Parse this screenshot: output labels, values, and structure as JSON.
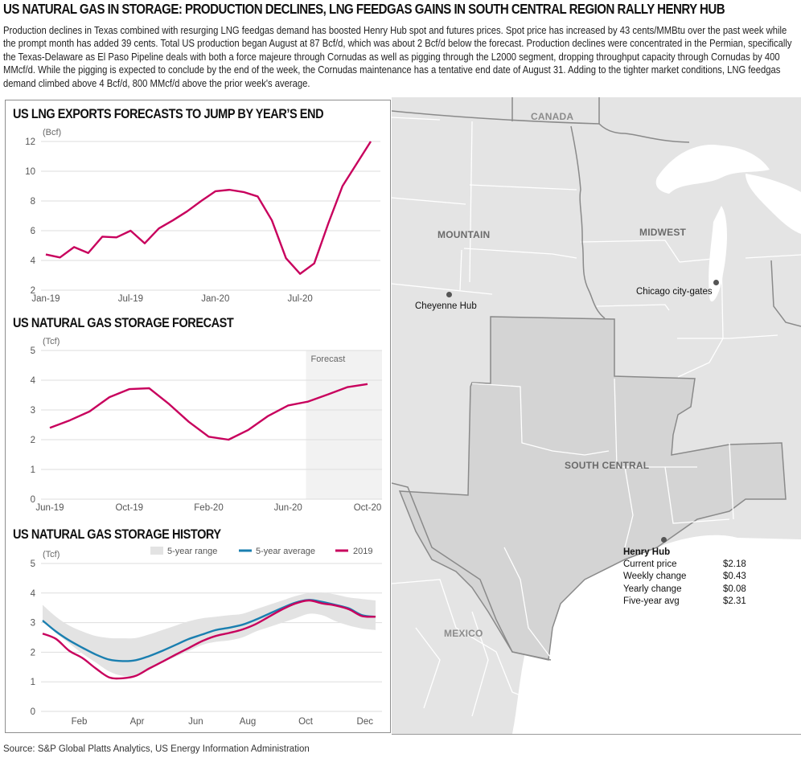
{
  "header": {
    "title": "US NATURAL GAS IN STORAGE: PRODUCTION DECLINES, LNG FEEDGAS GAINS IN SOUTH CENTRAL REGION RALLY HENRY HUB",
    "intro": "Production declines in Texas combined with resurging LNG feedgas demand has boosted Henry Hub spot and futures prices. Spot price has increased by 43 cents/MMBtu over the past week while the prompt month has added 39 cents. Total US production began August at 87 Bcf/d, which was about 2 Bcf/d below the forecast. Production declines were concentrated in the Permian, specifically the Texas-Delaware as El Paso Pipeline deals with both a force majeure through Cornudas as well as pigging through the L2000 segment, dropping throughput capacity through Cornudas by 400 MMcf/d. While the pigging is expected to conclude by the end of the week, the Cornudas maintenance has a tentative end date of August 31. Adding to the tighter market conditions, LNG feedgas demand climbed above 4 Bcf/d, 800 MMcf/d above the prior week's average."
  },
  "map": {
    "regions": [
      "CANADA",
      "MOUNTAIN",
      "MIDWEST",
      "SOUTH CENTRAL",
      "MEXICO"
    ],
    "hubs": [
      "Cheyenne Hub",
      "Chicago city-gates",
      "Henry Hub"
    ],
    "colors": {
      "land": "#e4e4e4",
      "highlight": "#d4d4d4",
      "water": "#ffffff",
      "border": "#8a8a8a",
      "hub": "#555555"
    }
  },
  "henry_hub": {
    "name": "Henry Hub",
    "rows": [
      {
        "label": "Current price",
        "value": "$2.18"
      },
      {
        "label": "Weekly change",
        "value": "$0.43"
      },
      {
        "label": "Yearly change",
        "value": "$0.08"
      },
      {
        "label": "Five-year avg",
        "value": "$2.31"
      }
    ]
  },
  "colors": {
    "series_2019": "#c8005d",
    "series_lng": "#c8005d",
    "series_avg": "#1a7fb0",
    "range": "#e3e3e3",
    "forecast_bg": "#f2f2f2",
    "grid": "#dddddd"
  },
  "source": "Source: S&P Global Platts Analytics, US Energy Information Administration",
  "chart_data": [
    {
      "type": "line",
      "title": "US LNG EXPORTS FORECASTS TO JUMP BY YEAR’S END",
      "ylabel": "(Bcf)",
      "xlabel": "",
      "ylim": [
        2,
        12
      ],
      "yticks": [
        2,
        4,
        6,
        8,
        10,
        12
      ],
      "grid": true,
      "x": [
        "Jan-19",
        "Feb-19",
        "Mar-19",
        "Apr-19",
        "May-19",
        "Jun-19",
        "Jul-19",
        "Aug-19",
        "Sep-19",
        "Oct-19",
        "Nov-19",
        "Dec-19",
        "Jan-20",
        "Feb-20",
        "Mar-20",
        "Apr-20",
        "May-20",
        "Jun-20",
        "Jul-20",
        "Aug-20",
        "Sep-20",
        "Oct-20",
        "Nov-20",
        "Dec-20"
      ],
      "xtick_labels": [
        "Jan-19",
        "Jul-19",
        "Jan-20",
        "Jul-20"
      ],
      "xtick_index": [
        0,
        6,
        12,
        18
      ],
      "series": [
        {
          "name": "LNG exports",
          "values": [
            4.4,
            4.2,
            4.9,
            4.5,
            5.6,
            5.55,
            6.0,
            5.15,
            6.15,
            6.7,
            7.3,
            8.0,
            8.65,
            8.75,
            8.6,
            8.3,
            6.7,
            4.15,
            3.1,
            3.8,
            6.5,
            9.0,
            10.5,
            12.0
          ]
        }
      ]
    },
    {
      "type": "line",
      "title": "US NATURAL GAS STORAGE FORECAST",
      "ylabel": "(Tcf)",
      "xlabel": "",
      "ylim": [
        0,
        5
      ],
      "yticks": [
        0,
        1,
        2,
        3,
        4,
        5
      ],
      "grid": true,
      "x": [
        "Jun-19",
        "Jul-19",
        "Aug-19",
        "Sep-19",
        "Oct-19",
        "Nov-19",
        "Dec-19",
        "Jan-20",
        "Feb-20",
        "Mar-20",
        "Apr-20",
        "May-20",
        "Jun-20",
        "Jul-20",
        "Aug-20",
        "Sep-20",
        "Oct-20"
      ],
      "xtick_labels": [
        "Jun-19",
        "Oct-19",
        "Feb-20",
        "Jun-20",
        "Oct-20"
      ],
      "xtick_index": [
        0,
        4,
        8,
        12,
        16
      ],
      "forecast_label": "Forecast",
      "forecast_start_index": 12.9,
      "series": [
        {
          "name": "Storage",
          "values": [
            2.4,
            2.65,
            2.95,
            3.43,
            3.7,
            3.73,
            3.2,
            2.6,
            2.1,
            2.0,
            2.33,
            2.8,
            3.15,
            3.28,
            3.52,
            3.77,
            3.87
          ]
        }
      ]
    },
    {
      "type": "area",
      "title": "US NATURAL GAS STORAGE HISTORY",
      "ylabel": "(Tcf)",
      "xlabel": "",
      "ylim": [
        0,
        5
      ],
      "yticks": [
        0,
        1,
        2,
        3,
        4,
        5
      ],
      "grid": true,
      "legend": "top-right",
      "xtick_labels": [
        "Feb",
        "Apr",
        "Jun",
        "Aug",
        "Oct",
        "Dec"
      ],
      "xtick_week": [
        5.5,
        14.2,
        23,
        30.8,
        39.5,
        48.4
      ],
      "weeks": [
        0,
        2,
        4,
        6,
        8,
        10,
        12,
        14,
        16,
        18,
        20,
        22,
        24,
        26,
        28,
        30,
        32,
        34,
        36,
        38,
        40,
        42,
        44,
        46,
        48,
        50
      ],
      "series": [
        {
          "name": "5-year range",
          "kind": "band",
          "low": [
            3.05,
            2.65,
            2.3,
            1.95,
            1.65,
            1.35,
            1.2,
            1.2,
            1.4,
            1.65,
            1.85,
            2.05,
            2.25,
            2.35,
            2.4,
            2.5,
            2.7,
            2.85,
            3.0,
            3.15,
            3.3,
            3.25,
            3.05,
            2.9,
            2.8,
            2.75
          ],
          "high": [
            3.6,
            3.2,
            2.9,
            2.7,
            2.55,
            2.48,
            2.47,
            2.48,
            2.6,
            2.75,
            2.9,
            3.05,
            3.15,
            3.2,
            3.25,
            3.3,
            3.45,
            3.6,
            3.75,
            3.9,
            4.0,
            4.02,
            3.95,
            3.85,
            3.8,
            3.75
          ]
        },
        {
          "name": "5-year average",
          "kind": "line",
          "values": [
            3.07,
            2.7,
            2.4,
            2.15,
            1.92,
            1.75,
            1.7,
            1.73,
            1.87,
            2.05,
            2.25,
            2.45,
            2.6,
            2.75,
            2.83,
            2.93,
            3.1,
            3.3,
            3.5,
            3.68,
            3.77,
            3.7,
            3.6,
            3.48,
            3.25,
            3.2
          ]
        },
        {
          "name": "2019",
          "kind": "line",
          "values": [
            2.63,
            2.45,
            2.05,
            1.8,
            1.45,
            1.15,
            1.12,
            1.2,
            1.45,
            1.68,
            1.92,
            2.15,
            2.38,
            2.55,
            2.65,
            2.77,
            2.95,
            3.2,
            3.45,
            3.65,
            3.75,
            3.65,
            3.58,
            3.45,
            3.22,
            3.2
          ]
        }
      ]
    }
  ]
}
